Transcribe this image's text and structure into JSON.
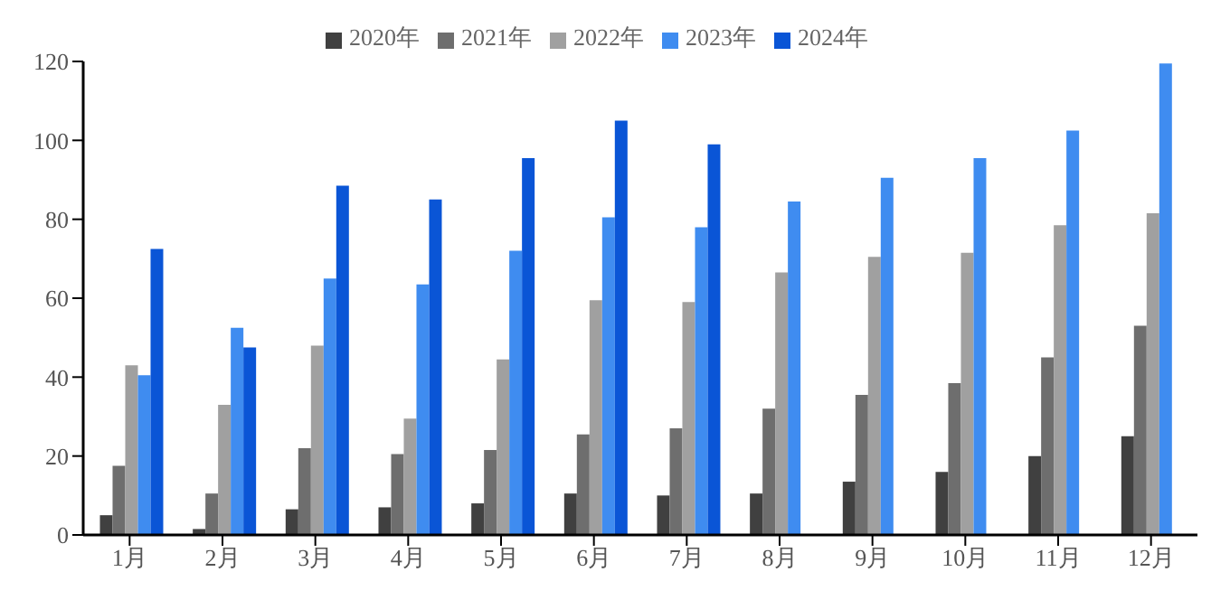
{
  "chart_data": {
    "type": "bar",
    "categories": [
      "1月",
      "2月",
      "3月",
      "4月",
      "5月",
      "6月",
      "7月",
      "8月",
      "9月",
      "10月",
      "11月",
      "12月"
    ],
    "series": [
      {
        "name": "2020年",
        "color": "#404040",
        "values": [
          5,
          1.5,
          6.5,
          7,
          8,
          10.5,
          10,
          10.5,
          13.5,
          16,
          20,
          25
        ]
      },
      {
        "name": "2021年",
        "color": "#6e6e6e",
        "values": [
          17.5,
          10.5,
          22,
          20.5,
          21.5,
          25.5,
          27,
          32,
          35.5,
          38.5,
          45,
          53
        ]
      },
      {
        "name": "2022年",
        "color": "#a0a0a0",
        "values": [
          43,
          33,
          48,
          29.5,
          44.5,
          59.5,
          59,
          66.5,
          70.5,
          71.5,
          78.5,
          81.5
        ]
      },
      {
        "name": "2023年",
        "color": "#3f8cf0",
        "values": [
          40.5,
          52.5,
          65,
          63.5,
          72,
          80.5,
          78,
          84.5,
          90.5,
          95.5,
          102.5,
          119.5
        ]
      },
      {
        "name": "2024年",
        "color": "#0a55d6",
        "values": [
          72.5,
          47.5,
          88.5,
          85,
          95.5,
          105,
          99,
          null,
          null,
          null,
          null,
          null
        ]
      }
    ],
    "ylim": [
      0,
      120
    ],
    "yticks": [
      0,
      20,
      40,
      60,
      80,
      100,
      120
    ],
    "grid": false,
    "legend": "top"
  }
}
